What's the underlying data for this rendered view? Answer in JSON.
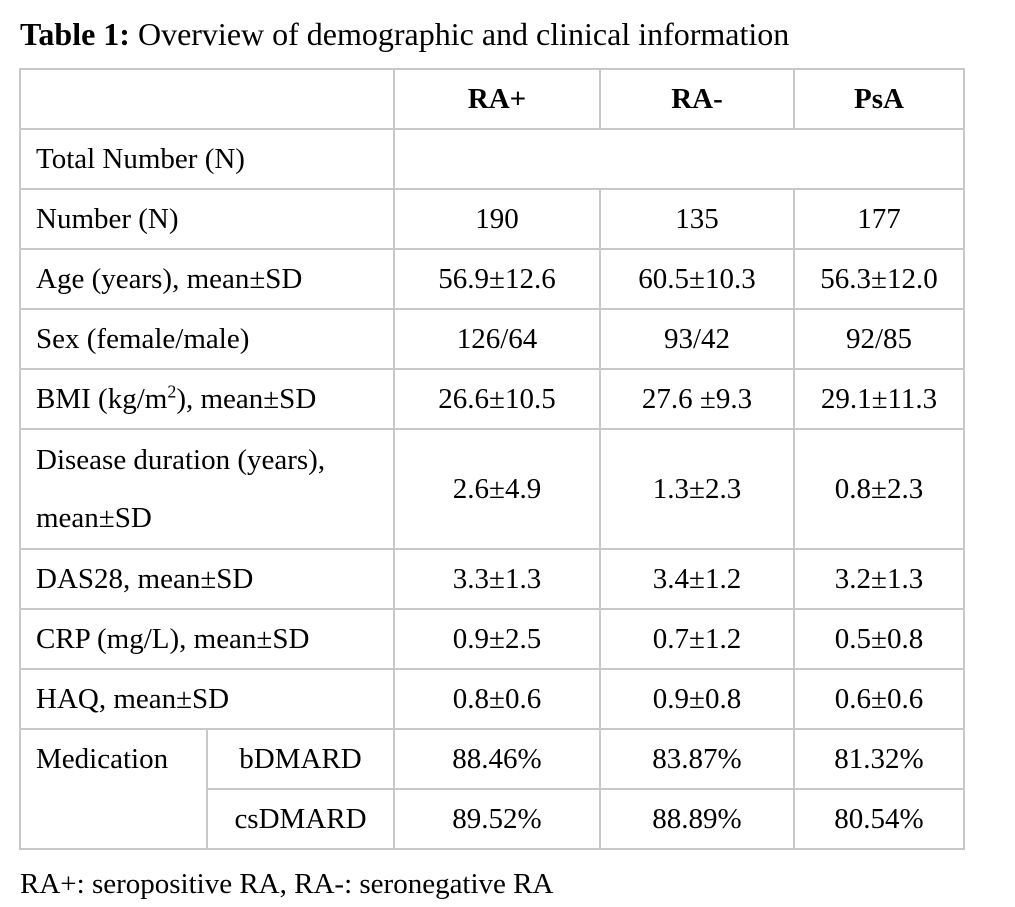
{
  "caption": {
    "label": "Table 1:",
    "text": " Overview of demographic and clinical information"
  },
  "table": {
    "headers": [
      "RA+",
      "RA-",
      "PsA"
    ],
    "total_number_label": "Total Number (N)",
    "rows": [
      {
        "label": "Number (N)",
        "values": [
          "190",
          "135",
          "177"
        ]
      },
      {
        "label": "Age (years), mean±SD",
        "values": [
          "56.9±12.6",
          "60.5±10.3",
          "56.3±12.0"
        ]
      },
      {
        "label": "Sex (female/male)",
        "values": [
          "126/64",
          "93/42",
          "92/85"
        ]
      },
      {
        "label_pre": "BMI (kg/m",
        "label_sup": "2",
        "label_post": "), mean±SD",
        "values": [
          "26.6±10.5",
          "27.6 ±9.3",
          "29.1±11.3"
        ]
      },
      {
        "label_line1": "Disease duration (years),",
        "label_line2": "mean±SD",
        "values": [
          "2.6±4.9",
          "1.3±2.3",
          "0.8±2.3"
        ]
      },
      {
        "label": "DAS28, mean±SD",
        "values": [
          "3.3±1.3",
          "3.4±1.2",
          "3.2±1.3"
        ]
      },
      {
        "label": "CRP (mg/L), mean±SD",
        "values": [
          "0.9±2.5",
          "0.7±1.2",
          "0.5±0.8"
        ]
      },
      {
        "label": "HAQ, mean±SD",
        "values": [
          "0.8±0.6",
          "0.9±0.8",
          "0.6±0.6"
        ]
      }
    ],
    "medication": {
      "label": "Medication",
      "rows": [
        {
          "label": "bDMARD",
          "values": [
            "88.46%",
            "83.87%",
            "81.32%"
          ]
        },
        {
          "label": "csDMARD",
          "values": [
            "89.52%",
            "88.89%",
            "80.54%"
          ]
        }
      ]
    }
  },
  "footnote": "RA+: seropositive RA, RA-: seronegative RA"
}
